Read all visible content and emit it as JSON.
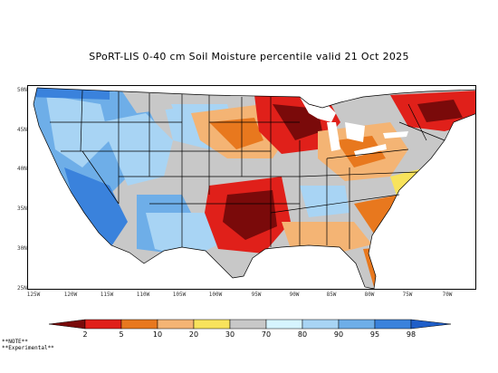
{
  "title": "SPoRT-LIS 0-40 cm Soil Moisture percentile valid 21 Oct 2025",
  "latitude_labels": [
    "50N",
    "45N",
    "40N",
    "35N",
    "30N",
    "25N"
  ],
  "longitude_labels": [
    "125W",
    "120W",
    "115W",
    "110W",
    "105W",
    "100W",
    "95W",
    "90W",
    "85W",
    "80W",
    "75W",
    "70W"
  ],
  "legend": {
    "tick_labels": [
      "2",
      "5",
      "10",
      "20",
      "30",
      "70",
      "80",
      "90",
      "95",
      "98"
    ],
    "colors": [
      "#7a0a0a",
      "#e0201a",
      "#e8781e",
      "#f4b474",
      "#f8e35c",
      "#c8c8c8",
      "#d6f4ff",
      "#a8d4f4",
      "#6eaee8",
      "#3a82dc",
      "#1f5ec8"
    ]
  },
  "notes": [
    "**NOTE**",
    "**Experimental**"
  ]
}
